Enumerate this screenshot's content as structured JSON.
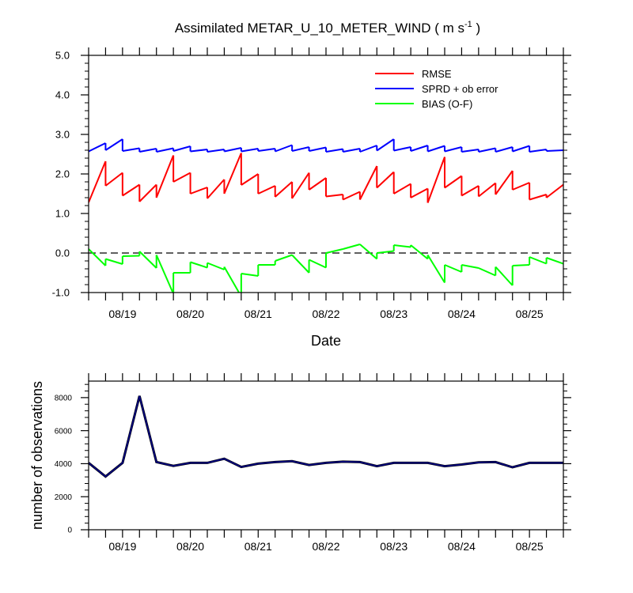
{
  "chart_data": [
    {
      "type": "line",
      "title": "Assimilated METAR_U_10_METER_WIND ( m s",
      "title_sup": "-1",
      "title_end": " )",
      "xlabel": "Date",
      "ylabel": "",
      "ylim": [
        -1.0,
        5.0
      ],
      "yticks": [
        "-1.0",
        "0.0",
        "1.0",
        "2.0",
        "3.0",
        "4.0",
        "5.0"
      ],
      "xlim": [
        0,
        28
      ],
      "xticks": [
        {
          "x": 2,
          "label": "08/19"
        },
        {
          "x": 6,
          "label": "08/20"
        },
        {
          "x": 10,
          "label": "08/21"
        },
        {
          "x": 14,
          "label": "08/22"
        },
        {
          "x": 18,
          "label": "08/23"
        },
        {
          "x": 22,
          "label": "08/24"
        },
        {
          "x": 26,
          "label": "08/25"
        }
      ],
      "legend_position": "top-right",
      "series": [
        {
          "name": "RMSE",
          "color": "#ff0000",
          "segments": [
            [
              [
                0,
                1.28
              ],
              [
                1,
                2.32
              ]
            ],
            [
              [
                1,
                1.7
              ],
              [
                2,
                2.03
              ]
            ],
            [
              [
                2,
                1.45
              ],
              [
                3,
                1.73
              ]
            ],
            [
              [
                3,
                1.3
              ],
              [
                4,
                1.73
              ]
            ],
            [
              [
                4,
                1.4
              ],
              [
                5,
                2.47
              ]
            ],
            [
              [
                5,
                1.8
              ],
              [
                6,
                2.03
              ]
            ],
            [
              [
                6,
                1.5
              ],
              [
                7,
                1.66
              ]
            ],
            [
              [
                7,
                1.38
              ],
              [
                8,
                1.86
              ]
            ],
            [
              [
                8,
                1.5
              ],
              [
                9,
                2.53
              ]
            ],
            [
              [
                9,
                1.72
              ],
              [
                10,
                2.0
              ]
            ],
            [
              [
                10,
                1.5
              ],
              [
                11,
                1.7
              ]
            ],
            [
              [
                11,
                1.42
              ],
              [
                12,
                1.8
              ]
            ],
            [
              [
                12,
                1.38
              ],
              [
                13,
                2.03
              ]
            ],
            [
              [
                13,
                1.6
              ],
              [
                14,
                1.9
              ]
            ],
            [
              [
                14,
                1.43
              ],
              [
                15,
                1.48
              ]
            ],
            [
              [
                15,
                1.35
              ],
              [
                16,
                1.55
              ]
            ],
            [
              [
                16,
                1.35
              ],
              [
                17,
                2.2
              ]
            ],
            [
              [
                17,
                1.65
              ],
              [
                18,
                2.05
              ]
            ],
            [
              [
                18,
                1.5
              ],
              [
                19,
                1.75
              ]
            ],
            [
              [
                19,
                1.4
              ],
              [
                20,
                1.63
              ]
            ],
            [
              [
                20,
                1.27
              ],
              [
                21,
                2.43
              ]
            ],
            [
              [
                21,
                1.65
              ],
              [
                22,
                1.95
              ]
            ],
            [
              [
                22,
                1.45
              ],
              [
                23,
                1.7
              ]
            ],
            [
              [
                23,
                1.43
              ],
              [
                24,
                1.77
              ]
            ],
            [
              [
                24,
                1.48
              ],
              [
                25,
                2.08
              ]
            ],
            [
              [
                25,
                1.6
              ],
              [
                26,
                1.78
              ]
            ],
            [
              [
                26,
                1.35
              ],
              [
                27,
                1.48
              ]
            ],
            [
              [
                27,
                1.4
              ],
              [
                28,
                1.73
              ]
            ]
          ]
        },
        {
          "name": "SPRD + ob error",
          "color": "#0000ff",
          "segments": [
            [
              [
                0,
                2.57
              ],
              [
                1,
                2.78
              ]
            ],
            [
              [
                1,
                2.6
              ],
              [
                2,
                2.88
              ]
            ],
            [
              [
                2,
                2.58
              ],
              [
                3,
                2.65
              ]
            ],
            [
              [
                3,
                2.56
              ],
              [
                4,
                2.64
              ]
            ],
            [
              [
                4,
                2.56
              ],
              [
                5,
                2.65
              ]
            ],
            [
              [
                5,
                2.58
              ],
              [
                6,
                2.7
              ]
            ],
            [
              [
                6,
                2.57
              ],
              [
                7,
                2.62
              ]
            ],
            [
              [
                7,
                2.56
              ],
              [
                8,
                2.62
              ]
            ],
            [
              [
                8,
                2.57
              ],
              [
                9,
                2.66
              ]
            ],
            [
              [
                9,
                2.57
              ],
              [
                10,
                2.64
              ]
            ],
            [
              [
                10,
                2.58
              ],
              [
                11,
                2.64
              ]
            ],
            [
              [
                11,
                2.57
              ],
              [
                12,
                2.73
              ]
            ],
            [
              [
                12,
                2.58
              ],
              [
                13,
                2.68
              ]
            ],
            [
              [
                13,
                2.58
              ],
              [
                14,
                2.67
              ]
            ],
            [
              [
                14,
                2.56
              ],
              [
                15,
                2.63
              ]
            ],
            [
              [
                15,
                2.56
              ],
              [
                16,
                2.64
              ]
            ],
            [
              [
                16,
                2.56
              ],
              [
                17,
                2.72
              ]
            ],
            [
              [
                17,
                2.59
              ],
              [
                18,
                2.88
              ]
            ],
            [
              [
                18,
                2.59
              ],
              [
                19,
                2.68
              ]
            ],
            [
              [
                19,
                2.58
              ],
              [
                20,
                2.72
              ]
            ],
            [
              [
                20,
                2.57
              ],
              [
                21,
                2.71
              ]
            ],
            [
              [
                21,
                2.57
              ],
              [
                22,
                2.68
              ]
            ],
            [
              [
                22,
                2.56
              ],
              [
                23,
                2.62
              ]
            ],
            [
              [
                23,
                2.56
              ],
              [
                24,
                2.65
              ]
            ],
            [
              [
                24,
                2.56
              ],
              [
                25,
                2.68
              ]
            ],
            [
              [
                25,
                2.57
              ],
              [
                26,
                2.71
              ]
            ],
            [
              [
                26,
                2.56
              ],
              [
                27,
                2.62
              ]
            ],
            [
              [
                27,
                2.58
              ],
              [
                28,
                2.6
              ]
            ]
          ]
        },
        {
          "name": "BIAS (O-F)",
          "color": "#00ff00",
          "segments": [
            [
              [
                0,
                0.1
              ],
              [
                1,
                -0.32
              ]
            ],
            [
              [
                1,
                -0.15
              ],
              [
                2,
                -0.28
              ]
            ],
            [
              [
                2,
                -0.08
              ],
              [
                3,
                -0.07
              ]
            ],
            [
              [
                3,
                0.04
              ],
              [
                4,
                -0.38
              ]
            ],
            [
              [
                4,
                -0.05
              ],
              [
                5,
                -1.03
              ]
            ],
            [
              [
                5,
                -0.5
              ],
              [
                6,
                -0.5
              ]
            ],
            [
              [
                6,
                -0.23
              ],
              [
                7,
                -0.37
              ]
            ],
            [
              [
                7,
                -0.25
              ],
              [
                8,
                -0.42
              ]
            ],
            [
              [
                8,
                -0.35
              ],
              [
                9,
                -1.1
              ]
            ],
            [
              [
                9,
                -0.52
              ],
              [
                10,
                -0.58
              ]
            ],
            [
              [
                10,
                -0.3
              ],
              [
                11,
                -0.3
              ]
            ],
            [
              [
                11,
                -0.2
              ],
              [
                12,
                -0.05
              ]
            ],
            [
              [
                12,
                -0.05
              ],
              [
                13,
                -0.5
              ]
            ],
            [
              [
                13,
                -0.17
              ],
              [
                14,
                -0.37
              ]
            ],
            [
              [
                14,
                0.0
              ],
              [
                15,
                0.1
              ]
            ],
            [
              [
                15,
                0.1
              ],
              [
                16,
                0.22
              ]
            ],
            [
              [
                16,
                0.22
              ],
              [
                17,
                -0.15
              ]
            ],
            [
              [
                17,
                0.0
              ],
              [
                18,
                0.05
              ]
            ],
            [
              [
                18,
                0.2
              ],
              [
                19,
                0.15
              ]
            ],
            [
              [
                19,
                0.2
              ],
              [
                20,
                -0.15
              ]
            ],
            [
              [
                20,
                -0.05
              ],
              [
                21,
                -0.75
              ]
            ],
            [
              [
                21,
                -0.3
              ],
              [
                22,
                -0.48
              ]
            ],
            [
              [
                22,
                -0.3
              ],
              [
                23,
                -0.38
              ]
            ],
            [
              [
                23,
                -0.38
              ],
              [
                24,
                -0.57
              ]
            ],
            [
              [
                24,
                -0.35
              ],
              [
                25,
                -0.82
              ]
            ],
            [
              [
                25,
                -0.32
              ],
              [
                26,
                -0.3
              ]
            ],
            [
              [
                26,
                -0.1
              ],
              [
                27,
                -0.27
              ]
            ],
            [
              [
                27,
                -0.12
              ],
              [
                28,
                -0.27
              ]
            ]
          ]
        }
      ],
      "reference_line": {
        "y": 0.0,
        "style": "dashed",
        "color": "#000000"
      }
    },
    {
      "type": "line",
      "title": "",
      "xlabel": "",
      "ylabel": "number of observations",
      "ylim": [
        0,
        9000
      ],
      "yticks": [
        "0",
        "2000",
        "4000",
        "6000",
        "8000"
      ],
      "xlim": [
        0,
        28
      ],
      "xticks": [
        {
          "x": 2,
          "label": "08/19"
        },
        {
          "x": 6,
          "label": "08/20"
        },
        {
          "x": 10,
          "label": "08/21"
        },
        {
          "x": 14,
          "label": "08/22"
        },
        {
          "x": 18,
          "label": "08/23"
        },
        {
          "x": 22,
          "label": "08/24"
        },
        {
          "x": 26,
          "label": "08/25"
        }
      ],
      "series": [
        {
          "color": "#000080",
          "x": [
            0,
            1,
            2,
            3,
            4,
            5,
            6,
            7,
            8,
            9,
            10,
            11,
            12,
            13,
            14,
            15,
            16,
            17,
            18,
            19,
            20,
            21,
            22,
            23,
            24,
            25,
            26,
            27,
            28
          ],
          "values": [
            4050,
            3220,
            4050,
            8100,
            4100,
            3870,
            4050,
            4050,
            4300,
            3800,
            4000,
            4100,
            4150,
            3920,
            4050,
            4120,
            4100,
            3850,
            4050,
            4050,
            4050,
            3850,
            3950,
            4080,
            4100,
            3780,
            4050,
            4050,
            4050
          ]
        }
      ]
    }
  ]
}
